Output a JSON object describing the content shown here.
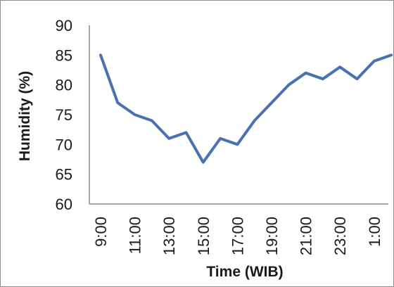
{
  "chart_data": {
    "type": "line",
    "title": "",
    "xlabel": "Time (WIB)",
    "ylabel": "Humidity (%)",
    "ylim": [
      60,
      90
    ],
    "yticks": [
      60,
      65,
      70,
      75,
      80,
      85,
      90
    ],
    "x": [
      "9:00",
      "10:00",
      "11:00",
      "12:00",
      "13:00",
      "14:00",
      "15:00",
      "16:00",
      "17:00",
      "18:00",
      "19:00",
      "20:00",
      "21:00",
      "22:00",
      "23:00",
      "0:00",
      "1:00",
      "2:00"
    ],
    "xtick_labels": [
      "9:00",
      "11:00",
      "13:00",
      "15:00",
      "17:00",
      "19:00",
      "21:00",
      "23:00",
      "1:00"
    ],
    "series": [
      {
        "values": [
          85,
          77,
          75,
          74,
          71,
          72,
          67,
          71,
          70,
          74,
          77,
          80,
          82,
          81,
          83,
          81,
          84,
          85
        ],
        "color": "#4a72b0"
      }
    ],
    "grid": false,
    "legend": "none"
  }
}
